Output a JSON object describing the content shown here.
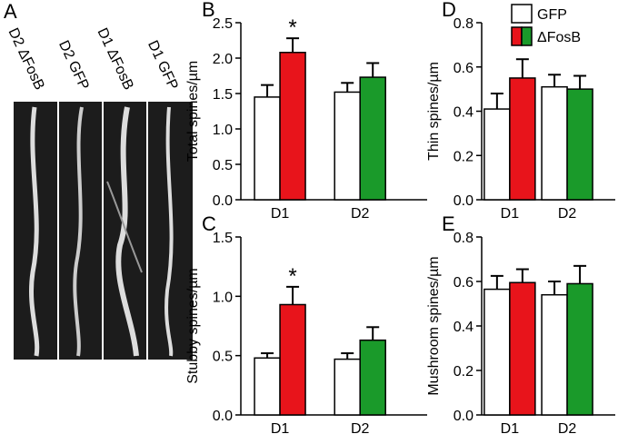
{
  "panel_a": {
    "letter": "A",
    "labels": [
      "D2 ΔFosB",
      "D2 GFP",
      "D1 ΔFosB",
      "D1 GFP"
    ]
  },
  "chart_data": [
    {
      "type": "bar",
      "panel": "B",
      "y_label": "Total spines/µm",
      "categories": [
        "D1",
        "D2"
      ],
      "ylim": [
        0,
        2.5
      ],
      "yticks": [
        {
          "value": 0,
          "label": "0.0"
        },
        0.5,
        {
          "value": 1,
          "label": "1.0"
        },
        1.5,
        {
          "value": 2,
          "label": "2.0"
        },
        2.5
      ],
      "series": [
        {
          "name": "GFP",
          "color": "#ffffff",
          "values": [
            1.45,
            1.52
          ],
          "errors": [
            0.17,
            0.13
          ]
        },
        {
          "name": "ΔFosB",
          "colors": [
            "#e8141b",
            "#1a9a2a"
          ],
          "values": [
            2.08,
            1.73
          ],
          "errors": [
            0.2,
            0.2
          ],
          "significance": [
            "*",
            null
          ]
        }
      ]
    },
    {
      "type": "bar",
      "panel": "C",
      "y_label": "Stubby spines/µm",
      "categories": [
        "D1",
        "D2"
      ],
      "ylim": [
        0,
        1.5
      ],
      "yticks": [
        {
          "value": 0,
          "label": "0.0"
        },
        0.5,
        {
          "value": 1,
          "label": "1.0"
        },
        1.5
      ],
      "series": [
        {
          "name": "GFP",
          "color": "#ffffff",
          "values": [
            0.48,
            0.47
          ],
          "errors": [
            0.04,
            0.05
          ]
        },
        {
          "name": "ΔFosB",
          "colors": [
            "#e8141b",
            "#1a9a2a"
          ],
          "values": [
            0.93,
            0.63
          ],
          "errors": [
            0.15,
            0.11
          ],
          "significance": [
            "*",
            null
          ]
        }
      ]
    },
    {
      "type": "bar",
      "panel": "D",
      "y_label": "Thin spines/µm",
      "categories": [
        "D1",
        "D2"
      ],
      "legend": "top-right",
      "ylim": [
        0,
        0.8
      ],
      "yticks": [
        {
          "value": 0,
          "label": "0.0"
        },
        0.2,
        0.4,
        0.6,
        0.8
      ],
      "series": [
        {
          "name": "GFP",
          "color": "#ffffff",
          "values": [
            0.41,
            0.51
          ],
          "errors": [
            0.07,
            0.055
          ]
        },
        {
          "name": "ΔFosB",
          "colors": [
            "#e8141b",
            "#1a9a2a"
          ],
          "values": [
            0.55,
            0.5
          ],
          "errors": [
            0.085,
            0.06
          ]
        }
      ]
    },
    {
      "type": "bar",
      "panel": "E",
      "y_label": "Mushroom spines/µm",
      "categories": [
        "D1",
        "D2"
      ],
      "ylim": [
        0,
        0.8
      ],
      "yticks": [
        {
          "value": 0,
          "label": "0.0"
        },
        0.2,
        0.4,
        0.6,
        0.8
      ],
      "series": [
        {
          "name": "GFP",
          "color": "#ffffff",
          "values": [
            0.565,
            0.54
          ],
          "errors": [
            0.06,
            0.06
          ]
        },
        {
          "name": "ΔFosB",
          "colors": [
            "#e8141b",
            "#1a9a2a"
          ],
          "values": [
            0.595,
            0.59
          ],
          "errors": [
            0.06,
            0.08
          ]
        }
      ]
    }
  ]
}
